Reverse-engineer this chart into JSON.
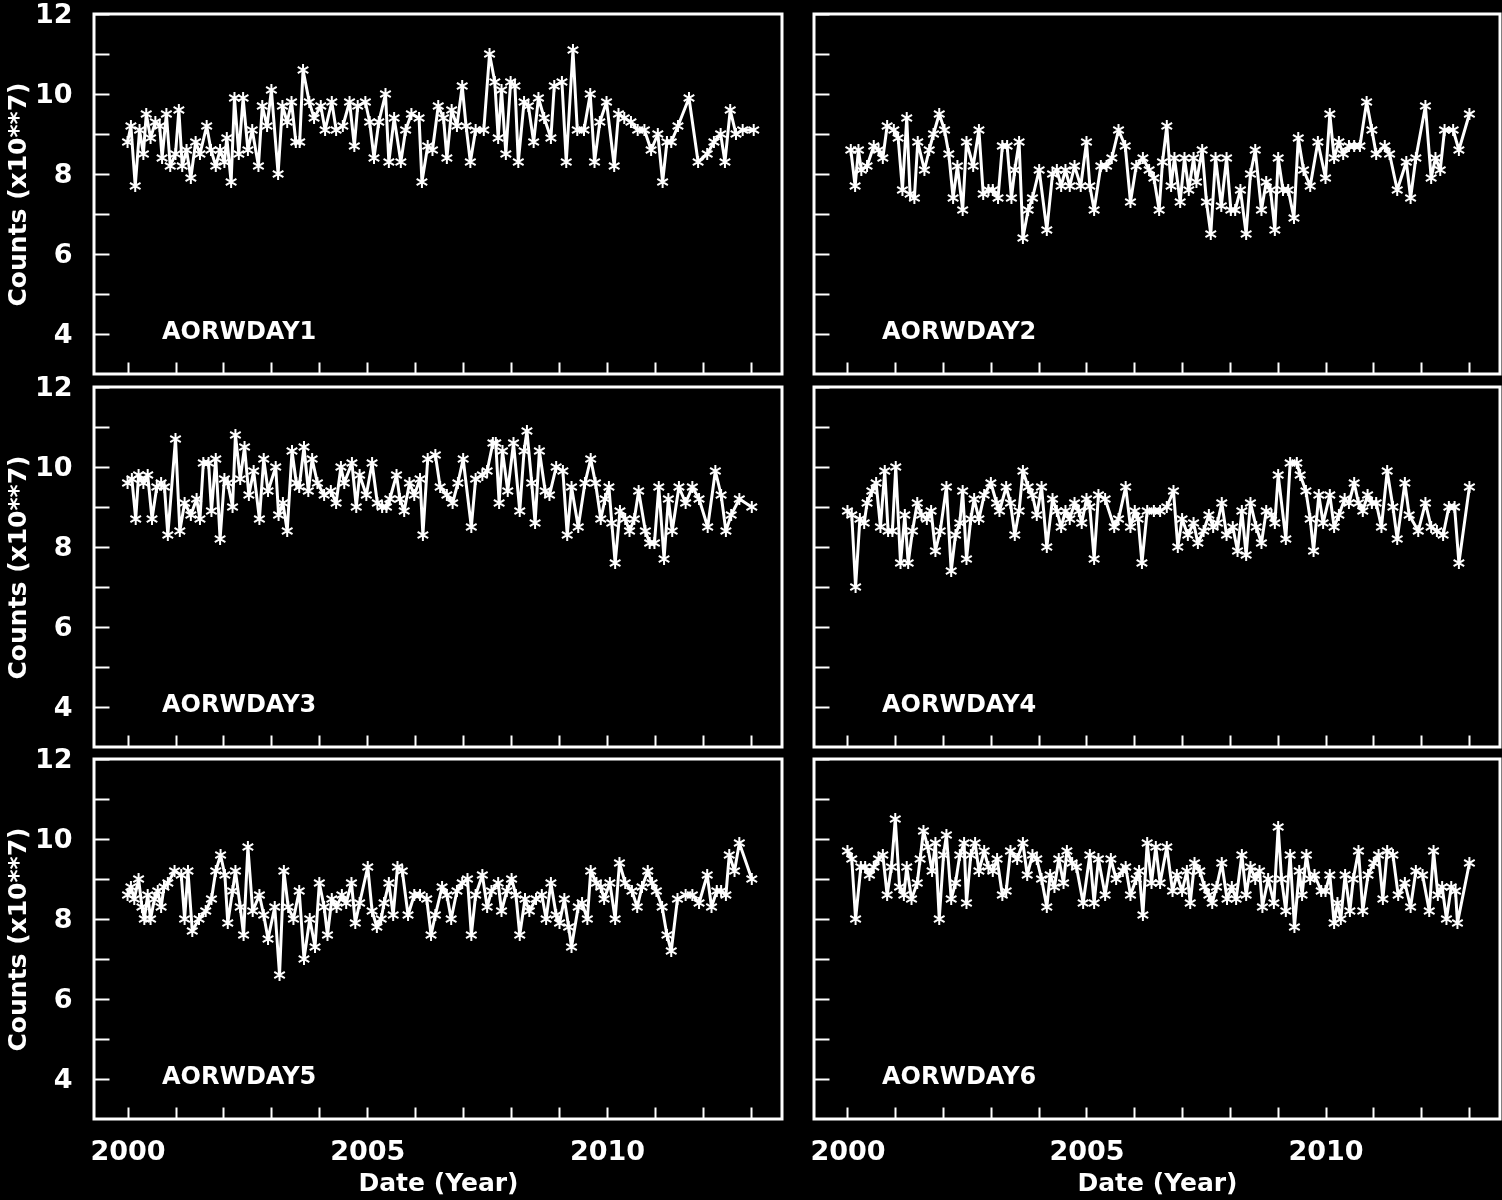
{
  "chart_data": [
    {
      "type": "line",
      "annotations": [
        "AORWDAY1"
      ],
      "ylabel": "Counts (x10**7)",
      "tick_labels": "y",
      "color": "#ffffff",
      "marker": "cross",
      "line_style": "solid",
      "xlim": [
        1999.3,
        2013.65
      ],
      "ylim": [
        3,
        12
      ],
      "xticks": [
        2000,
        {
          "value": 2001,
          "label": null
        },
        {
          "value": 2002,
          "label": null
        },
        {
          "value": 2003,
          "label": null
        },
        {
          "value": 2004,
          "label": null
        },
        2005,
        {
          "value": 2006,
          "label": null
        },
        {
          "value": 2007,
          "label": null
        },
        {
          "value": 2008,
          "label": null
        },
        {
          "value": 2009,
          "label": null
        },
        2010,
        {
          "value": 2011,
          "label": null
        },
        {
          "value": 2012,
          "label": null
        },
        {
          "value": 2013,
          "label": null
        }
      ],
      "yticks": [
        4,
        {
          "value": 5,
          "label": null
        },
        6,
        {
          "value": 7,
          "label": null
        },
        8,
        {
          "value": 9,
          "label": null
        },
        10,
        {
          "value": 11,
          "label": null
        },
        12
      ],
      "x": [
        2000.0,
        2000.07,
        2000.16,
        2000.25,
        2000.33,
        2000.39,
        2000.48,
        2000.58,
        2000.67,
        2000.72,
        2000.81,
        2000.89,
        2001.0,
        2001.07,
        2001.14,
        2001.23,
        2001.32,
        2001.42,
        2001.51,
        2001.65,
        2001.74,
        2001.84,
        2001.93,
        2002.02,
        2002.07,
        2002.16,
        2002.23,
        2002.32,
        2002.41,
        2002.51,
        2002.6,
        2002.73,
        2002.81,
        2002.91,
        2003.0,
        2003.14,
        2003.23,
        2003.33,
        2003.42,
        2003.51,
        2003.59,
        2003.66,
        2003.79,
        2003.89,
        2004.03,
        2004.12,
        2004.26,
        2004.35,
        2004.49,
        2004.63,
        2004.73,
        2004.8,
        2004.96,
        2005.05,
        2005.14,
        2005.24,
        2005.38,
        2005.45,
        2005.56,
        2005.7,
        2005.8,
        2005.92,
        2006.08,
        2006.14,
        2006.26,
        2006.36,
        2006.48,
        2006.59,
        2006.66,
        2006.76,
        2006.87,
        2006.98,
        2007.06,
        2007.15,
        2007.26,
        2007.43,
        2007.55,
        2007.66,
        2007.73,
        2007.8,
        2007.89,
        2007.99,
        2008.08,
        2008.15,
        2008.27,
        2008.36,
        2008.47,
        2008.57,
        2008.69,
        2008.83,
        2008.9,
        2009.06,
        2009.15,
        2009.29,
        2009.38,
        2009.52,
        2009.65,
        2009.74,
        2009.85,
        2009.99,
        2010.15,
        2010.24,
        2010.36,
        2010.5,
        2010.64,
        2010.78,
        2010.92,
        2011.06,
        2011.16,
        2011.25,
        2011.34,
        2011.48,
        2011.71,
        2011.9,
        2012.09,
        2012.23,
        2012.37,
        2012.46,
        2012.57,
        2012.69,
        2012.83,
        2013.06
      ],
      "values": [
        8.8,
        9.2,
        7.7,
        9.1,
        8.5,
        9.5,
        8.9,
        9.3,
        9.2,
        8.4,
        9.5,
        8.2,
        8.5,
        9.6,
        8.2,
        8.6,
        7.9,
        8.8,
        8.5,
        9.2,
        8.6,
        8.2,
        8.6,
        8.3,
        8.9,
        7.8,
        9.9,
        8.5,
        9.9,
        8.6,
        9.1,
        8.2,
        9.7,
        9.2,
        10.1,
        8.0,
        9.7,
        9.3,
        9.8,
        8.8,
        8.8,
        10.6,
        9.8,
        9.4,
        9.7,
        9.1,
        9.8,
        9.1,
        9.2,
        9.8,
        8.7,
        9.7,
        9.8,
        9.3,
        8.4,
        9.3,
        10.0,
        8.3,
        9.4,
        8.3,
        9.1,
        9.5,
        9.4,
        7.8,
        8.7,
        8.6,
        9.7,
        9.4,
        8.4,
        9.6,
        9.2,
        10.2,
        9.2,
        8.3,
        9.1,
        9.1,
        11.0,
        10.3,
        8.9,
        10.1,
        8.5,
        10.3,
        10.2,
        8.3,
        9.8,
        9.7,
        8.8,
        9.9,
        9.4,
        8.9,
        10.2,
        10.3,
        8.3,
        11.1,
        9.1,
        9.1,
        10.0,
        8.3,
        9.3,
        9.8,
        8.2,
        9.5,
        9.4,
        9.3,
        9.1,
        9.1,
        8.6,
        9.0,
        7.8,
        8.8,
        8.8,
        9.2,
        9.9,
        8.3,
        8.5,
        8.8,
        9.0,
        8.3,
        9.6,
        9.0,
        9.1,
        9.1
      ]
    },
    {
      "type": "line",
      "annotations": [
        "AORWDAY2"
      ],
      "tick_labels": false,
      "color": "#ffffff",
      "marker": "cross",
      "line_style": "solid",
      "xlim": [
        1999.3,
        2013.65
      ],
      "ylim": [
        3,
        12
      ],
      "xticks": [
        2000,
        {
          "value": 2001,
          "label": null
        },
        {
          "value": 2002,
          "label": null
        },
        {
          "value": 2003,
          "label": null
        },
        {
          "value": 2004,
          "label": null
        },
        2005,
        {
          "value": 2006,
          "label": null
        },
        {
          "value": 2007,
          "label": null
        },
        {
          "value": 2008,
          "label": null
        },
        {
          "value": 2009,
          "label": null
        },
        2010,
        {
          "value": 2011,
          "label": null
        },
        {
          "value": 2012,
          "label": null
        },
        {
          "value": 2013,
          "label": null
        }
      ],
      "yticks": [
        4,
        {
          "value": 5,
          "label": null
        },
        6,
        {
          "value": 7,
          "label": null
        },
        8,
        {
          "value": 9,
          "label": null
        },
        10,
        {
          "value": 11,
          "label": null
        },
        12
      ],
      "x": [
        2000.07,
        2000.16,
        2000.23,
        2000.29,
        2000.41,
        2000.55,
        2000.65,
        2000.74,
        2000.83,
        2000.97,
        2001.06,
        2001.15,
        2001.24,
        2001.31,
        2001.4,
        2001.47,
        2001.61,
        2001.71,
        2001.8,
        2001.92,
        2002.03,
        2002.12,
        2002.21,
        2002.3,
        2002.41,
        2002.49,
        2002.63,
        2002.75,
        2002.84,
        2002.95,
        2003.04,
        2003.15,
        2003.24,
        2003.34,
        2003.43,
        2003.5,
        2003.59,
        2003.67,
        2003.78,
        2003.87,
        2004.01,
        2004.17,
        2004.29,
        2004.38,
        2004.47,
        2004.56,
        2004.65,
        2004.75,
        2004.88,
        2005.0,
        2005.07,
        2005.16,
        2005.3,
        2005.42,
        2005.53,
        2005.67,
        2005.81,
        2005.92,
        2006.04,
        2006.18,
        2006.31,
        2006.41,
        2006.52,
        2006.59,
        2006.68,
        2006.77,
        2006.84,
        2006.96,
        2007.05,
        2007.14,
        2007.24,
        2007.3,
        2007.42,
        2007.51,
        2007.6,
        2007.7,
        2007.82,
        2007.93,
        2008.02,
        2008.11,
        2008.22,
        2008.34,
        2008.43,
        2008.53,
        2008.66,
        2008.76,
        2008.85,
        2008.94,
        2009.01,
        2009.11,
        2009.22,
        2009.34,
        2009.43,
        2009.54,
        2009.68,
        2009.84,
        2010.0,
        2010.09,
        2010.18,
        2010.28,
        2010.37,
        2010.49,
        2010.6,
        2010.72,
        2010.86,
        2010.97,
        2011.06,
        2011.24,
        2011.34,
        2011.5,
        2011.69,
        2011.78,
        2011.89,
        2012.09,
        2012.21,
        2012.3,
        2012.4,
        2012.49,
        2012.67,
        2012.79,
        2013.01
      ],
      "values": [
        8.6,
        7.7,
        8.6,
        8.1,
        8.2,
        8.7,
        8.6,
        8.4,
        9.2,
        9.1,
        8.9,
        7.6,
        9.4,
        7.5,
        7.4,
        8.8,
        8.1,
        8.6,
        9.0,
        9.5,
        9.1,
        8.5,
        7.4,
        8.2,
        7.1,
        8.8,
        8.2,
        9.1,
        7.5,
        7.6,
        7.6,
        7.4,
        8.7,
        8.7,
        7.4,
        8.1,
        8.8,
        6.4,
        7.1,
        7.4,
        8.1,
        6.6,
        8.0,
        8.1,
        7.7,
        8.1,
        7.7,
        8.2,
        7.7,
        8.8,
        7.7,
        7.1,
        8.2,
        8.2,
        8.4,
        9.1,
        8.7,
        7.3,
        8.2,
        8.4,
        8.1,
        7.9,
        7.1,
        8.3,
        9.2,
        7.7,
        8.4,
        7.3,
        8.4,
        7.6,
        8.4,
        7.8,
        8.6,
        7.3,
        6.5,
        8.4,
        7.2,
        8.4,
        7.1,
        7.1,
        7.6,
        6.5,
        8.0,
        8.6,
        7.1,
        7.8,
        7.6,
        6.6,
        8.4,
        7.6,
        7.6,
        6.9,
        8.9,
        8.1,
        7.7,
        8.8,
        7.9,
        9.5,
        8.4,
        8.8,
        8.5,
        8.7,
        8.7,
        8.7,
        9.8,
        9.1,
        8.5,
        8.7,
        8.5,
        7.6,
        8.3,
        7.4,
        8.4,
        9.7,
        7.9,
        8.4,
        8.1,
        9.1,
        9.1,
        8.6,
        9.5
      ]
    },
    {
      "type": "line",
      "annotations": [
        "AORWDAY3"
      ],
      "ylabel": "Counts (x10**7)",
      "tick_labels": "y",
      "color": "#ffffff",
      "marker": "cross",
      "line_style": "solid",
      "xlim": [
        1999.3,
        2013.65
      ],
      "ylim": [
        3,
        12
      ],
      "xticks": [
        2000,
        {
          "value": 2001,
          "label": null
        },
        {
          "value": 2002,
          "label": null
        },
        {
          "value": 2003,
          "label": null
        },
        {
          "value": 2004,
          "label": null
        },
        2005,
        {
          "value": 2006,
          "label": null
        },
        {
          "value": 2007,
          "label": null
        },
        {
          "value": 2008,
          "label": null
        },
        {
          "value": 2009,
          "label": null
        },
        2010,
        {
          "value": 2011,
          "label": null
        },
        {
          "value": 2012,
          "label": null
        },
        {
          "value": 2013,
          "label": null
        }
      ],
      "yticks": [
        4,
        {
          "value": 5,
          "label": null
        },
        6,
        {
          "value": 7,
          "label": null
        },
        8,
        {
          "value": 9,
          "label": null
        },
        10,
        {
          "value": 11,
          "label": null
        },
        12
      ],
      "x": [
        2000.0,
        2000.09,
        2000.17,
        2000.23,
        2000.33,
        2000.42,
        2000.51,
        2000.61,
        2000.7,
        2000.77,
        2000.84,
        2001.0,
        2001.09,
        2001.19,
        2001.32,
        2001.44,
        2001.51,
        2001.58,
        2001.69,
        2001.75,
        2001.84,
        2001.93,
        2002.02,
        2002.09,
        2002.19,
        2002.25,
        2002.35,
        2002.44,
        2002.53,
        2002.63,
        2002.75,
        2002.84,
        2002.93,
        2003.09,
        2003.15,
        2003.24,
        2003.33,
        2003.43,
        2003.52,
        2003.58,
        2003.68,
        2003.77,
        2003.85,
        2003.96,
        2004.1,
        2004.24,
        2004.35,
        2004.45,
        2004.52,
        2004.68,
        2004.77,
        2004.84,
        2004.98,
        2005.1,
        2005.21,
        2005.31,
        2005.4,
        2005.47,
        2005.61,
        2005.68,
        2005.77,
        2005.88,
        2005.98,
        2006.1,
        2006.16,
        2006.26,
        2006.42,
        2006.52,
        2006.66,
        2006.78,
        2006.89,
        2007.0,
        2007.17,
        2007.26,
        2007.4,
        2007.5,
        2007.62,
        2007.68,
        2007.75,
        2007.82,
        2007.93,
        2008.05,
        2008.18,
        2008.27,
        2008.33,
        2008.43,
        2008.5,
        2008.59,
        2008.71,
        2008.8,
        2008.94,
        2009.08,
        2009.17,
        2009.26,
        2009.4,
        2009.54,
        2009.66,
        2009.76,
        2009.87,
        2009.96,
        2010.04,
        2010.1,
        2010.17,
        2010.27,
        2010.38,
        2010.47,
        2010.57,
        2010.66,
        2010.8,
        2010.89,
        2010.99,
        2011.08,
        2011.19,
        2011.28,
        2011.36,
        2011.5,
        2011.64,
        2011.78,
        2011.92,
        2012.1,
        2012.26,
        2012.38,
        2012.48,
        2012.59,
        2012.76,
        2013.02
      ],
      "values": [
        9.6,
        9.7,
        8.7,
        9.8,
        9.6,
        9.8,
        8.7,
        9.5,
        9.6,
        9.5,
        8.3,
        10.7,
        8.4,
        9.1,
        8.8,
        9.2,
        8.7,
        10.1,
        10.1,
        8.9,
        10.2,
        8.2,
        9.7,
        9.6,
        9.0,
        10.8,
        9.7,
        10.5,
        9.3,
        9.9,
        8.7,
        10.2,
        9.4,
        10.0,
        8.8,
        9.1,
        8.4,
        10.4,
        9.6,
        9.5,
        10.5,
        9.4,
        10.2,
        9.6,
        9.3,
        9.4,
        9.1,
        10.0,
        9.6,
        10.1,
        9.0,
        9.8,
        9.3,
        10.1,
        9.1,
        9.0,
        9.0,
        9.2,
        9.8,
        9.2,
        8.9,
        9.6,
        9.3,
        9.7,
        8.3,
        10.2,
        10.3,
        9.5,
        9.3,
        9.1,
        9.6,
        10.2,
        8.5,
        9.7,
        9.8,
        9.9,
        10.6,
        10.6,
        9.1,
        10.4,
        9.4,
        10.6,
        8.9,
        10.4,
        10.9,
        9.6,
        8.6,
        10.4,
        9.4,
        9.3,
        10.0,
        9.9,
        8.3,
        9.5,
        8.5,
        9.6,
        10.2,
        9.6,
        8.7,
        9.2,
        9.5,
        8.6,
        7.6,
        8.9,
        8.7,
        8.4,
        8.7,
        9.4,
        8.4,
        8.1,
        8.1,
        9.5,
        7.7,
        9.2,
        8.4,
        9.5,
        9.1,
        9.5,
        9.2,
        8.5,
        9.9,
        9.3,
        8.4,
        8.8,
        9.2,
        9.0
      ]
    },
    {
      "type": "line",
      "annotations": [
        "AORWDAY4"
      ],
      "tick_labels": false,
      "color": "#ffffff",
      "marker": "cross",
      "line_style": "solid",
      "xlim": [
        1999.3,
        2013.65
      ],
      "ylim": [
        3,
        12
      ],
      "xticks": [
        2000,
        {
          "value": 2001,
          "label": null
        },
        {
          "value": 2002,
          "label": null
        },
        {
          "value": 2003,
          "label": null
        },
        {
          "value": 2004,
          "label": null
        },
        2005,
        {
          "value": 2006,
          "label": null
        },
        {
          "value": 2007,
          "label": null
        },
        {
          "value": 2008,
          "label": null
        },
        {
          "value": 2009,
          "label": null
        },
        2010,
        {
          "value": 2011,
          "label": null
        },
        {
          "value": 2012,
          "label": null
        },
        {
          "value": 2013,
          "label": null
        }
      ],
      "yticks": [
        4,
        {
          "value": 5,
          "label": null
        },
        6,
        {
          "value": 7,
          "label": null
        },
        8,
        {
          "value": 9,
          "label": null
        },
        10,
        {
          "value": 11,
          "label": null
        },
        12
      ],
      "x": [
        2000.0,
        2000.09,
        2000.17,
        2000.26,
        2000.35,
        2000.41,
        2000.51,
        2000.6,
        2000.69,
        2000.78,
        2000.85,
        2000.94,
        2001.01,
        2001.11,
        2001.2,
        2001.27,
        2001.36,
        2001.46,
        2001.55,
        2001.66,
        2001.75,
        2001.84,
        2001.94,
        2002.07,
        2002.17,
        2002.26,
        2002.35,
        2002.41,
        2002.49,
        2002.58,
        2002.65,
        2002.75,
        2002.86,
        2003.0,
        2003.12,
        2003.18,
        2003.32,
        2003.41,
        2003.5,
        2003.59,
        2003.67,
        2003.78,
        2003.87,
        2003.96,
        2004.06,
        2004.17,
        2004.29,
        2004.38,
        2004.47,
        2004.56,
        2004.65,
        2004.75,
        2004.84,
        2004.9,
        2005.0,
        2005.07,
        2005.16,
        2005.25,
        2005.39,
        2005.58,
        2005.67,
        2005.82,
        2005.92,
        2006.01,
        2006.08,
        2006.16,
        2006.27,
        2006.41,
        2006.54,
        2006.68,
        2006.82,
        2006.91,
        2007.0,
        2007.12,
        2007.24,
        2007.33,
        2007.45,
        2007.56,
        2007.65,
        2007.74,
        2007.83,
        2007.93,
        2008.06,
        2008.16,
        2008.25,
        2008.34,
        2008.43,
        2008.55,
        2008.66,
        2008.76,
        2008.87,
        2008.94,
        2009.01,
        2009.17,
        2009.26,
        2009.4,
        2009.47,
        2009.59,
        2009.68,
        2009.75,
        2009.86,
        2009.95,
        2010.09,
        2010.18,
        2010.28,
        2010.4,
        2010.49,
        2010.6,
        2010.69,
        2010.78,
        2010.88,
        2010.97,
        2011.06,
        2011.17,
        2011.29,
        2011.41,
        2011.5,
        2011.66,
        2011.75,
        2011.94,
        2012.09,
        2012.21,
        2012.33,
        2012.46,
        2012.58,
        2012.7,
        2012.79,
        2013.01
      ],
      "values": [
        8.9,
        8.8,
        7.0,
        8.7,
        8.6,
        9.1,
        9.4,
        9.6,
        8.5,
        9.9,
        8.4,
        8.4,
        10.0,
        7.6,
        8.8,
        7.6,
        8.4,
        9.1,
        8.8,
        8.7,
        8.9,
        7.9,
        8.4,
        9.5,
        7.4,
        8.3,
        8.6,
        9.4,
        7.7,
        8.7,
        9.2,
        8.7,
        9.3,
        9.6,
        9.1,
        8.9,
        9.5,
        9.1,
        8.3,
        8.9,
        9.9,
        9.5,
        9.3,
        8.8,
        9.5,
        8.0,
        9.2,
        8.9,
        8.5,
        8.9,
        8.7,
        9.1,
        8.9,
        8.6,
        9.2,
        9.0,
        7.7,
        9.3,
        9.2,
        8.5,
        8.7,
        9.5,
        8.5,
        8.9,
        8.7,
        7.6,
        8.9,
        8.9,
        8.9,
        9.0,
        9.4,
        8.0,
        8.7,
        8.3,
        8.6,
        8.1,
        8.4,
        8.8,
        8.5,
        8.6,
        9.1,
        8.3,
        8.5,
        7.9,
        8.9,
        7.8,
        9.1,
        8.5,
        8.1,
        8.9,
        8.8,
        8.6,
        9.8,
        8.2,
        10.1,
        10.1,
        9.8,
        9.4,
        8.7,
        7.9,
        9.3,
        8.6,
        9.3,
        8.5,
        8.8,
        9.2,
        9.1,
        9.6,
        9.1,
        8.9,
        9.3,
        9.1,
        9.1,
        8.5,
        9.9,
        9.0,
        8.2,
        9.6,
        8.8,
        8.4,
        9.1,
        8.5,
        8.4,
        8.3,
        9.0,
        9.0,
        7.6,
        9.5
      ]
    },
    {
      "type": "line",
      "annotations": [
        "AORWDAY5"
      ],
      "xlabel": "Date (Year)",
      "ylabel": "Counts (x10**7)",
      "color": "#ffffff",
      "marker": "cross",
      "line_style": "solid",
      "xlim": [
        1999.3,
        2013.65
      ],
      "ylim": [
        3,
        12
      ],
      "xticks": [
        2000,
        {
          "value": 2001,
          "label": null
        },
        {
          "value": 2002,
          "label": null
        },
        {
          "value": 2003,
          "label": null
        },
        {
          "value": 2004,
          "label": null
        },
        2005,
        {
          "value": 2006,
          "label": null
        },
        {
          "value": 2007,
          "label": null
        },
        {
          "value": 2008,
          "label": null
        },
        {
          "value": 2009,
          "label": null
        },
        2010,
        {
          "value": 2011,
          "label": null
        },
        {
          "value": 2012,
          "label": null
        },
        {
          "value": 2013,
          "label": null
        }
      ],
      "yticks": [
        4,
        {
          "value": 5,
          "label": null
        },
        6,
        {
          "value": 7,
          "label": null
        },
        8,
        {
          "value": 9,
          "label": null
        },
        10,
        {
          "value": 11,
          "label": null
        },
        12
      ],
      "x": [
        2000.0,
        2000.07,
        2000.14,
        2000.23,
        2000.3,
        2000.35,
        2000.42,
        2000.48,
        2000.56,
        2000.63,
        2000.7,
        2000.76,
        2000.84,
        2000.98,
        2001.12,
        2001.19,
        2001.26,
        2001.35,
        2001.49,
        2001.63,
        2001.75,
        2001.84,
        2001.94,
        2002.03,
        2002.09,
        2002.19,
        2002.25,
        2002.35,
        2002.42,
        2002.51,
        2002.61,
        2002.75,
        2002.84,
        2002.93,
        2003.07,
        2003.17,
        2003.26,
        2003.35,
        2003.46,
        2003.58,
        2003.68,
        2003.8,
        2003.91,
        2004.0,
        2004.1,
        2004.17,
        2004.26,
        2004.36,
        2004.47,
        2004.56,
        2004.67,
        2004.75,
        2004.84,
        2005.01,
        2005.1,
        2005.2,
        2005.29,
        2005.35,
        2005.45,
        2005.54,
        2005.63,
        2005.73,
        2005.85,
        2005.98,
        2006.1,
        2006.24,
        2006.33,
        2006.42,
        2006.56,
        2006.66,
        2006.75,
        2006.87,
        2006.98,
        2007.09,
        2007.17,
        2007.26,
        2007.4,
        2007.5,
        2007.59,
        2007.73,
        2007.8,
        2007.91,
        2008.01,
        2008.1,
        2008.18,
        2008.29,
        2008.38,
        2008.52,
        2008.64,
        2008.73,
        2008.83,
        2008.94,
        2009.01,
        2009.11,
        2009.2,
        2009.26,
        2009.4,
        2009.48,
        2009.59,
        2009.66,
        2009.78,
        2009.87,
        2009.94,
        2010.06,
        2010.17,
        2010.26,
        2010.38,
        2010.52,
        2010.63,
        2010.73,
        2010.85,
        2010.94,
        2011.03,
        2011.15,
        2011.25,
        2011.34,
        2011.47,
        2011.64,
        2011.78,
        2011.92,
        2012.09,
        2012.18,
        2012.29,
        2012.38,
        2012.48,
        2012.55,
        2012.66,
        2012.76,
        2013.02
      ],
      "values": [
        8.6,
        8.8,
        8.5,
        9.0,
        8.3,
        8.0,
        8.6,
        8.0,
        8.5,
        8.7,
        8.3,
        8.8,
        8.9,
        9.2,
        9.1,
        8.0,
        9.2,
        7.7,
        8.0,
        8.2,
        8.5,
        9.2,
        9.6,
        9.1,
        7.9,
        8.7,
        9.2,
        8.3,
        7.6,
        9.8,
        8.2,
        8.6,
        8.1,
        7.5,
        8.3,
        6.6,
        9.2,
        8.3,
        8.0,
        8.7,
        7.0,
        8.0,
        7.3,
        8.9,
        8.3,
        7.6,
        8.5,
        8.3,
        8.6,
        8.4,
        8.9,
        7.9,
        8.4,
        9.3,
        8.2,
        7.8,
        8.0,
        8.4,
        8.9,
        8.1,
        9.3,
        9.2,
        8.1,
        8.6,
        8.6,
        8.5,
        7.6,
        8.1,
        8.8,
        8.6,
        8.0,
        8.7,
        8.9,
        9.0,
        7.6,
        8.6,
        9.1,
        8.3,
        8.7,
        8.9,
        8.2,
        8.7,
        9.0,
        8.6,
        7.6,
        8.5,
        8.2,
        8.5,
        8.6,
        8.0,
        8.9,
        8.1,
        7.9,
        8.5,
        7.8,
        7.3,
        8.3,
        8.4,
        8.0,
        9.2,
        8.9,
        8.8,
        8.5,
        8.9,
        8.0,
        9.4,
        8.9,
        8.7,
        8.3,
        8.8,
        9.2,
        8.9,
        8.7,
        8.3,
        7.6,
        7.2,
        8.5,
        8.6,
        8.6,
        8.4,
        9.1,
        8.3,
        8.7,
        8.7,
        8.6,
        9.6,
        9.2,
        9.9,
        9.0
      ]
    },
    {
      "type": "line",
      "annotations": [
        "AORWDAY6"
      ],
      "xlabel": "Date (Year)",
      "tick_labels": "x",
      "color": "#ffffff",
      "marker": "cross",
      "line_style": "solid",
      "xlim": [
        1999.3,
        2013.65
      ],
      "ylim": [
        3,
        12
      ],
      "xticks": [
        2000,
        {
          "value": 2001,
          "label": null
        },
        {
          "value": 2002,
          "label": null
        },
        {
          "value": 2003,
          "label": null
        },
        {
          "value": 2004,
          "label": null
        },
        2005,
        {
          "value": 2006,
          "label": null
        },
        {
          "value": 2007,
          "label": null
        },
        {
          "value": 2008,
          "label": null
        },
        {
          "value": 2009,
          "label": null
        },
        2010,
        {
          "value": 2011,
          "label": null
        },
        {
          "value": 2012,
          "label": null
        },
        {
          "value": 2013,
          "label": null
        }
      ],
      "yticks": [
        4,
        {
          "value": 5,
          "label": null
        },
        6,
        {
          "value": 7,
          "label": null
        },
        8,
        {
          "value": 9,
          "label": null
        },
        10,
        {
          "value": 11,
          "label": null
        },
        12
      ],
      "x": [
        2000.0,
        2000.09,
        2000.17,
        2000.28,
        2000.37,
        2000.46,
        2000.55,
        2000.65,
        2000.74,
        2000.83,
        2000.92,
        2001.0,
        2001.09,
        2001.18,
        2001.24,
        2001.34,
        2001.46,
        2001.52,
        2001.59,
        2001.68,
        2001.77,
        2001.84,
        2001.92,
        2002.01,
        2002.07,
        2002.17,
        2002.26,
        2002.35,
        2002.44,
        2002.49,
        2002.58,
        2002.67,
        2002.75,
        2002.86,
        2002.95,
        2003.04,
        2003.13,
        2003.24,
        2003.32,
        2003.41,
        2003.55,
        2003.67,
        2003.76,
        2003.87,
        2003.96,
        2004.06,
        2004.17,
        2004.24,
        2004.33,
        2004.42,
        2004.52,
        2004.59,
        2004.7,
        2004.79,
        2004.93,
        2005.07,
        2005.16,
        2005.25,
        2005.39,
        2005.51,
        2005.62,
        2005.76,
        2005.82,
        2005.92,
        2006.04,
        2006.1,
        2006.18,
        2006.27,
        2006.36,
        2006.45,
        2006.54,
        2006.68,
        2006.8,
        2006.89,
        2007.0,
        2007.1,
        2007.17,
        2007.26,
        2007.37,
        2007.47,
        2007.56,
        2007.63,
        2007.72,
        2007.83,
        2007.94,
        2008.04,
        2008.13,
        2008.25,
        2008.34,
        2008.43,
        2008.53,
        2008.62,
        2008.68,
        2008.8,
        2008.92,
        2009.01,
        2009.08,
        2009.17,
        2009.26,
        2009.35,
        2009.45,
        2009.51,
        2009.6,
        2009.68,
        2009.77,
        2009.91,
        2010.0,
        2010.09,
        2010.18,
        2010.25,
        2010.32,
        2010.41,
        2010.51,
        2010.58,
        2010.69,
        2010.78,
        2010.89,
        2011.01,
        2011.11,
        2011.2,
        2011.29,
        2011.41,
        2011.52,
        2011.66,
        2011.78,
        2011.89,
        2012.03,
        2012.17,
        2012.26,
        2012.35,
        2012.44,
        2012.53,
        2012.63,
        2012.72,
        2012.76,
        2013.01
      ],
      "values": [
        9.7,
        9.5,
        8.0,
        9.3,
        9.3,
        9.1,
        9.3,
        9.5,
        9.6,
        8.6,
        9.3,
        10.5,
        8.8,
        8.6,
        9.3,
        8.5,
        8.9,
        9.5,
        10.2,
        9.8,
        9.2,
        9.9,
        8.0,
        9.6,
        10.1,
        8.5,
        8.9,
        9.6,
        9.9,
        8.4,
        9.6,
        9.9,
        9.2,
        9.7,
        9.3,
        9.2,
        9.5,
        8.6,
        8.7,
        9.7,
        9.5,
        9.9,
        9.1,
        9.6,
        9.5,
        9.0,
        8.3,
        9.1,
        8.8,
        9.5,
        8.9,
        9.7,
        9.4,
        9.3,
        8.4,
        9.6,
        8.4,
        9.5,
        8.6,
        9.5,
        9.0,
        9.2,
        9.3,
        8.6,
        9.0,
        9.2,
        8.1,
        9.9,
        8.9,
        9.8,
        8.9,
        9.8,
        8.7,
        9.1,
        8.7,
        9.2,
        8.4,
        9.4,
        9.2,
        8.8,
        8.6,
        8.4,
        8.8,
        9.4,
        8.5,
        8.8,
        8.5,
        9.6,
        8.6,
        9.3,
        9.0,
        9.2,
        8.3,
        9.0,
        8.4,
        10.3,
        9.0,
        8.2,
        9.6,
        7.8,
        9.2,
        8.6,
        9.6,
        9.0,
        9.1,
        8.7,
        8.7,
        9.1,
        7.9,
        8.4,
        8.0,
        9.1,
        8.2,
        9.0,
        9.7,
        8.2,
        9.1,
        9.4,
        9.6,
        8.5,
        9.7,
        9.6,
        8.6,
        8.9,
        8.3,
        9.2,
        9.1,
        8.2,
        9.7,
        8.6,
        8.8,
        8.0,
        8.8,
        8.7,
        7.9,
        9.4
      ]
    }
  ]
}
